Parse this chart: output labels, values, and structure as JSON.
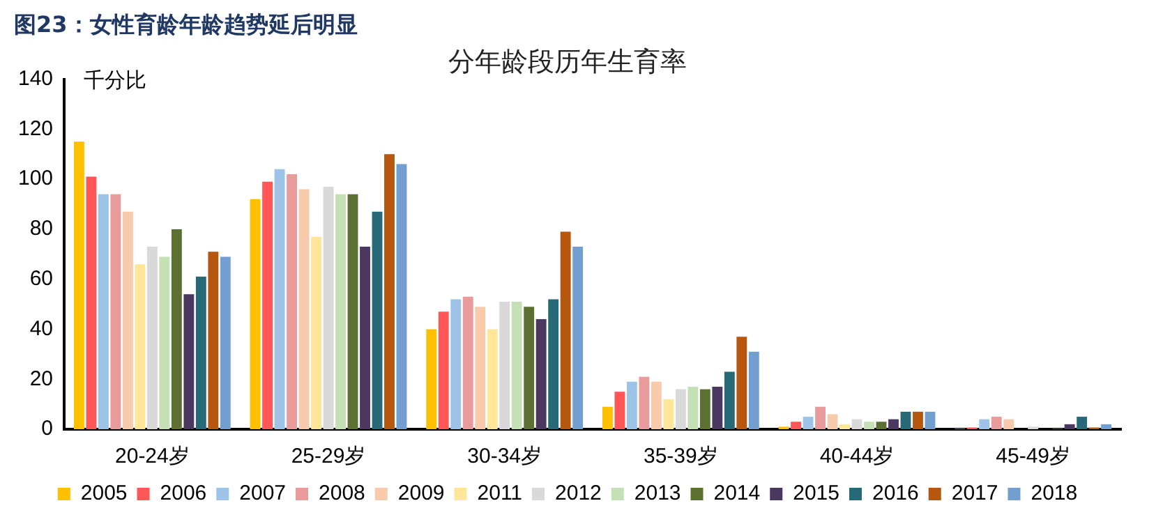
{
  "chart_data": {
    "type": "bar",
    "title": "分年龄段历年生育率",
    "subtitle": "图23：女性育龄年龄趋势延后明显",
    "ylabel": "千分比",
    "categories": [
      "20-24岁",
      "25-29岁",
      "30-34岁",
      "35-39岁",
      "40-44岁",
      "45-49岁"
    ],
    "ylim": [
      0,
      140
    ],
    "yticks": [
      0,
      20,
      40,
      60,
      80,
      100,
      120,
      140
    ],
    "grid": false,
    "legend": "bottom",
    "series": [
      {
        "name": "2005",
        "color": "#ffc000",
        "values": [
          115,
          92,
          40,
          9,
          1,
          0.2
        ]
      },
      {
        "name": "2006",
        "color": "#ff5757",
        "values": [
          101,
          99,
          47,
          15,
          3,
          0.7
        ]
      },
      {
        "name": "2007",
        "color": "#9dc3e6",
        "values": [
          94,
          104,
          52,
          19,
          5,
          4
        ]
      },
      {
        "name": "2008",
        "color": "#e99b9b",
        "values": [
          94,
          102,
          53,
          21,
          9,
          5
        ]
      },
      {
        "name": "2009",
        "color": "#f8cbad",
        "values": [
          87,
          96,
          49,
          19,
          6,
          4
        ]
      },
      {
        "name": "2011",
        "color": "#ffe699",
        "values": [
          66,
          77,
          40,
          12,
          2,
          null
        ]
      },
      {
        "name": "2012",
        "color": "#d9d9d9",
        "values": [
          73,
          97,
          51,
          16,
          4,
          1
        ]
      },
      {
        "name": "2013",
        "color": "#c5e0b4",
        "values": [
          69,
          94,
          51,
          17,
          3,
          null
        ]
      },
      {
        "name": "2014",
        "color": "#5b7031",
        "values": [
          80,
          94,
          49,
          16,
          3,
          0.3
        ]
      },
      {
        "name": "2015",
        "color": "#4a3860",
        "values": [
          54,
          73,
          44,
          17,
          4,
          2
        ]
      },
      {
        "name": "2016",
        "color": "#286978",
        "values": [
          61,
          87,
          52,
          23,
          7,
          5
        ]
      },
      {
        "name": "2017",
        "color": "#b5570e",
        "values": [
          71,
          110,
          79,
          37,
          7,
          0.7
        ]
      },
      {
        "name": "2018",
        "color": "#729fcf",
        "values": [
          69,
          106,
          73,
          31,
          7,
          2
        ]
      }
    ]
  }
}
